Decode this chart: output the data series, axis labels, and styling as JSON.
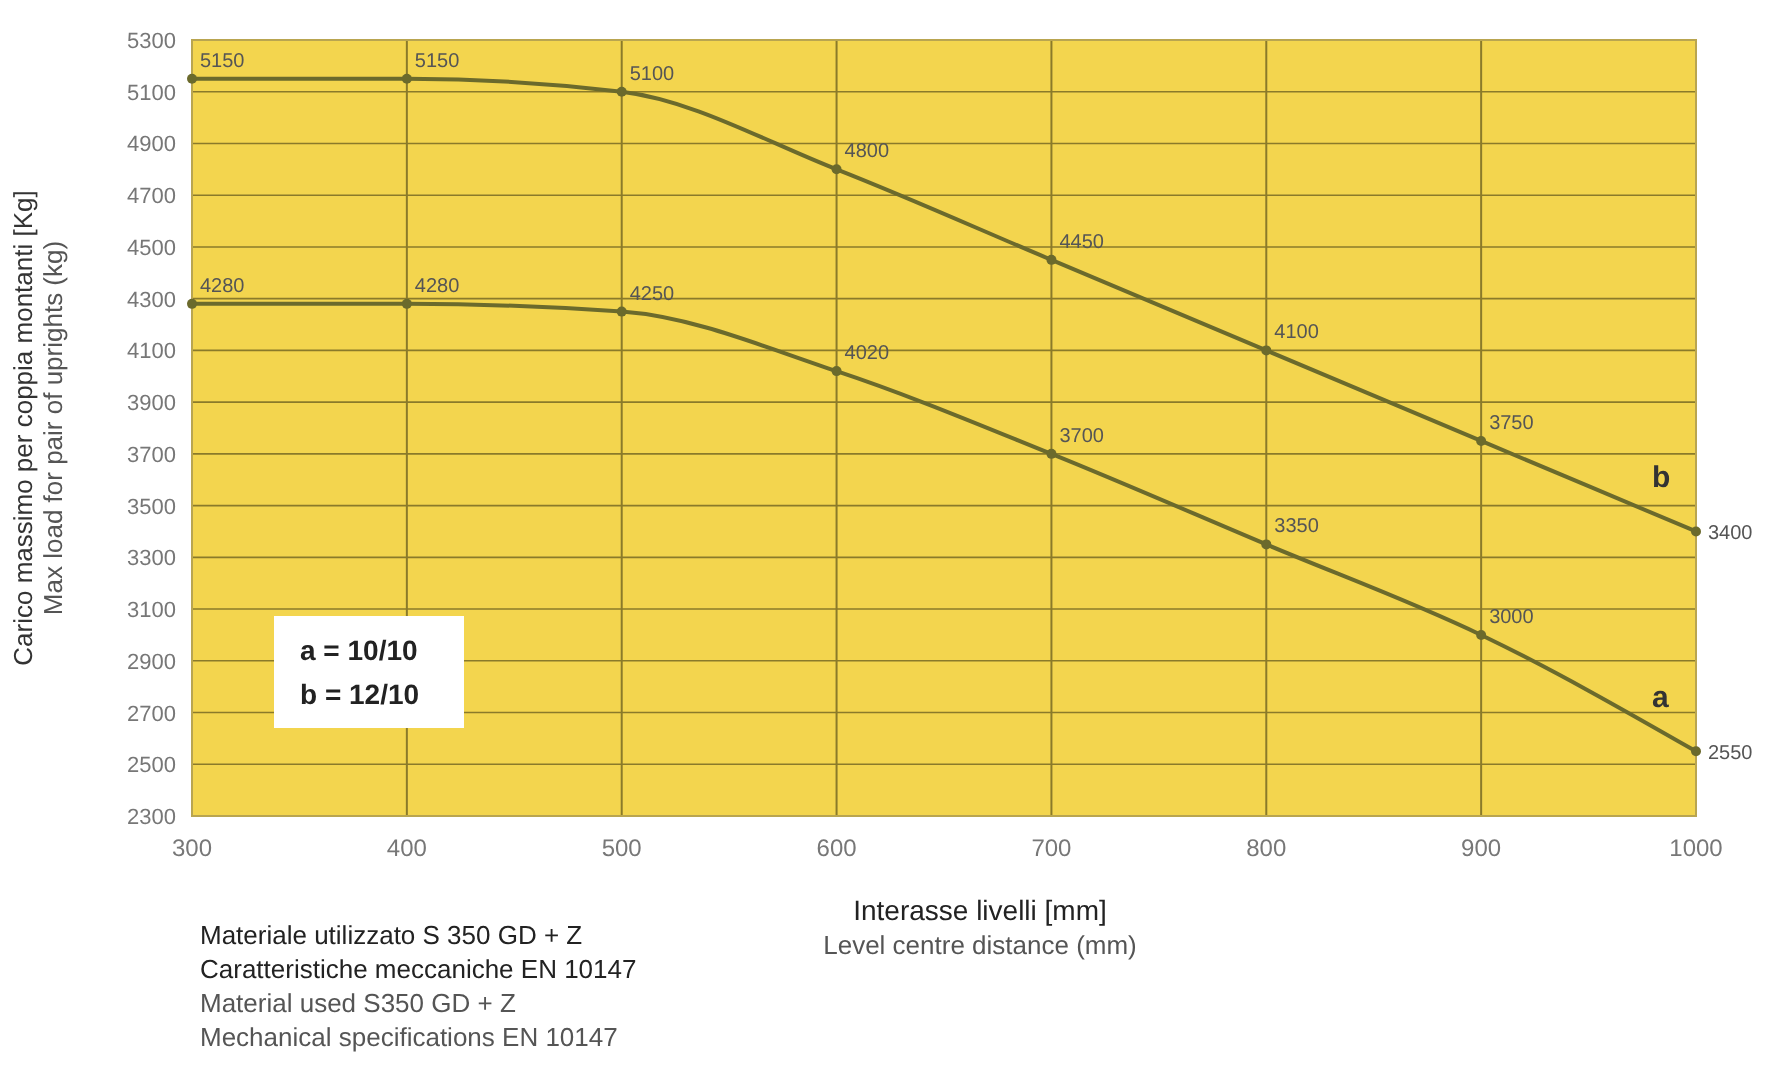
{
  "chart_data": {
    "type": "line",
    "xlabel": "Interasse livelli [mm]\nLevel centre distance (mm)",
    "ylabel": "Carico massimo per coppia montanti [Kg]\nMax load for pair of uprights (kg)",
    "x": [
      300,
      400,
      500,
      600,
      700,
      800,
      900,
      1000
    ],
    "series": [
      {
        "name": "b",
        "color": "#6b6a2c",
        "values": [
          5150,
          5150,
          5100,
          4800,
          4450,
          4100,
          3750,
          3400
        ]
      },
      {
        "name": "a",
        "color": "#6b6a2c",
        "values": [
          4280,
          4280,
          4250,
          4020,
          3700,
          3350,
          3000,
          2550
        ]
      }
    ],
    "xlim": [
      300,
      1000
    ],
    "xticks": [
      300,
      400,
      500,
      600,
      700,
      800,
      900,
      1000
    ],
    "ylim": [
      2300,
      5300
    ],
    "yticks": [
      2300,
      2500,
      2700,
      2900,
      3100,
      3300,
      3500,
      3700,
      3900,
      4100,
      4300,
      4500,
      4700,
      4900,
      5100,
      5300
    ],
    "grid": true,
    "marker": "circle",
    "line_style": "solid",
    "data_labels": true,
    "annotations": [
      "a = 10/10\nb = 12/10",
      "Materiale utilizzato S 350 GD + Z\nCaratteristiche meccaniche EN 10147\nMaterial used S350 GD + Z\nMechanical specifications EN 10147"
    ]
  }
}
